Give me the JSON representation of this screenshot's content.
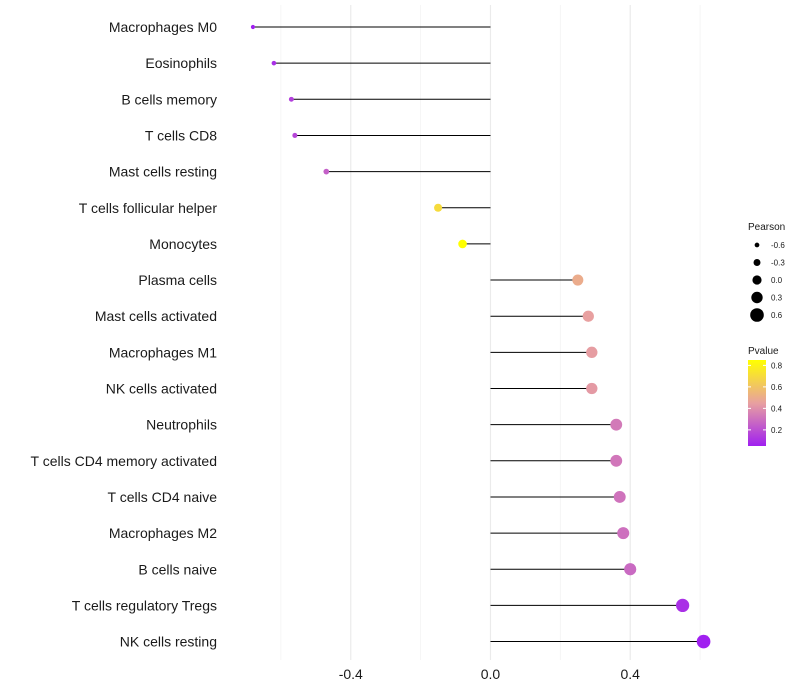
{
  "chart_data": {
    "type": "lollipop",
    "categories": [
      "Macrophages M0",
      "Eosinophils",
      "B cells memory",
      "T cells CD8",
      "Mast cells resting",
      "T cells follicular helper",
      "Monocytes",
      "Plasma cells",
      "Mast cells activated",
      "Macrophages M1",
      "NK cells activated",
      "Neutrophils",
      "T cells CD4 memory activated",
      "T cells CD4 naive",
      "Macrophages M2",
      "B cells naive",
      "T cells regulatory  Tregs",
      "NK cells resting"
    ],
    "values": [
      -0.68,
      -0.62,
      -0.57,
      -0.56,
      -0.47,
      -0.15,
      -0.08,
      0.25,
      0.28,
      0.29,
      0.29,
      0.36,
      0.36,
      0.37,
      0.38,
      0.4,
      0.55,
      0.61
    ],
    "pvalues": [
      0.05,
      0.1,
      0.15,
      0.17,
      0.25,
      0.7,
      0.85,
      0.5,
      0.45,
      0.44,
      0.43,
      0.33,
      0.32,
      0.31,
      0.3,
      0.28,
      0.1,
      0.05
    ],
    "xlim": [
      -0.76,
      0.72
    ],
    "xticks": [
      {
        "value": -0.4,
        "label": "-0.4"
      },
      {
        "value": 0.0,
        "label": "0.0"
      },
      {
        "value": 0.4,
        "label": "0.4"
      }
    ],
    "minor_gridlines": [
      -0.6,
      -0.2,
      0.2,
      0.6
    ],
    "title": "",
    "xlabel": "",
    "ylabel": "",
    "grid": true,
    "legend": {
      "size_title": "Pearson",
      "size_entries": [
        {
          "value": -0.6,
          "label": "-0.6"
        },
        {
          "value": -0.3,
          "label": "-0.3"
        },
        {
          "value": 0.0,
          "label": "0.0"
        },
        {
          "value": 0.3,
          "label": "0.3"
        },
        {
          "value": 0.6,
          "label": "0.6"
        }
      ],
      "color_title": "Pvalue",
      "color_ticks": [
        {
          "value": 0.8,
          "label": "0.8"
        },
        {
          "value": 0.6,
          "label": "0.6"
        },
        {
          "value": 0.4,
          "label": "0.4"
        },
        {
          "value": 0.2,
          "label": "0.2"
        }
      ],
      "color_range": [
        0.05,
        0.85
      ],
      "placement": "right"
    },
    "colors": {
      "low": "#a020f0",
      "mid": "#e8a0a0",
      "high": "#ffff00",
      "stem": "#000000",
      "grid": "#ebebeb"
    }
  }
}
